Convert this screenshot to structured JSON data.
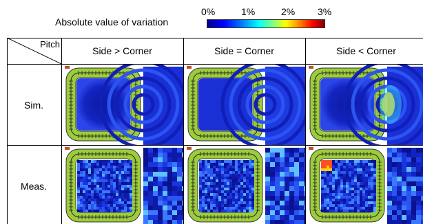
{
  "legend": {
    "title": "Absolute  value of variation",
    "ticks": [
      "0%",
      "1%",
      "2%",
      "3%"
    ]
  },
  "table": {
    "corner_label": "Pitch",
    "columns": [
      "Side > Corner",
      "Side = Corner",
      "Side < Corner"
    ],
    "rows": [
      "Sim.",
      "Meas."
    ]
  },
  "colors": {
    "coil_green": "#9ccc3c",
    "map_dark": "#0a0a8a",
    "map_mid": "#1a2fd6",
    "hotspot": "#ffd000"
  },
  "icons": [
    "coil-icon",
    "field-map"
  ]
}
